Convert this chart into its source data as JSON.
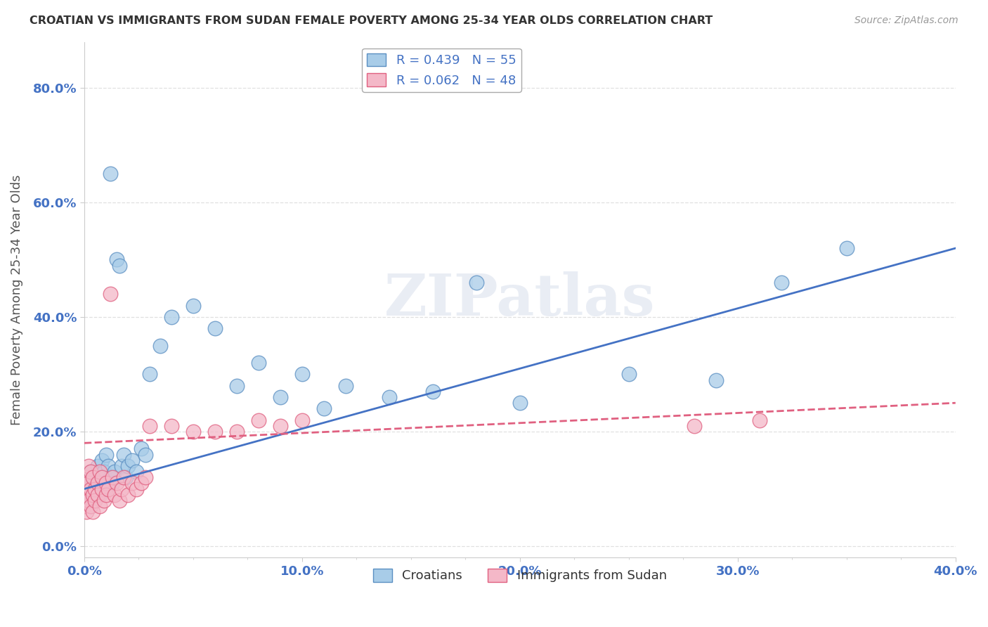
{
  "title": "CROATIAN VS IMMIGRANTS FROM SUDAN FEMALE POVERTY AMONG 25-34 YEAR OLDS CORRELATION CHART",
  "source": "Source: ZipAtlas.com",
  "xlabel_ticks": [
    "0.0%",
    "10.0%",
    "20.0%",
    "30.0%",
    "40.0%"
  ],
  "ylabel_ticks": [
    "0.0%",
    "20.0%",
    "40.0%",
    "60.0%",
    "80.0%"
  ],
  "xlim": [
    0.0,
    0.4
  ],
  "ylim": [
    -0.02,
    0.88
  ],
  "ylabel": "Female Poverty Among 25-34 Year Olds",
  "blue_series": {
    "name": "Croatians",
    "R": 0.439,
    "N": 55,
    "color": "#a8cce8",
    "edge_color": "#5b8fc2",
    "x": [
      0.0,
      0.001,
      0.001,
      0.002,
      0.002,
      0.003,
      0.003,
      0.003,
      0.004,
      0.004,
      0.005,
      0.005,
      0.006,
      0.006,
      0.007,
      0.007,
      0.008,
      0.008,
      0.009,
      0.01,
      0.01,
      0.011,
      0.012,
      0.012,
      0.013,
      0.014,
      0.015,
      0.016,
      0.017,
      0.018,
      0.019,
      0.02,
      0.022,
      0.024,
      0.026,
      0.028,
      0.03,
      0.035,
      0.04,
      0.05,
      0.06,
      0.07,
      0.08,
      0.09,
      0.1,
      0.11,
      0.12,
      0.14,
      0.16,
      0.18,
      0.2,
      0.25,
      0.29,
      0.32,
      0.35
    ],
    "y": [
      0.12,
      0.1,
      0.08,
      0.11,
      0.09,
      0.13,
      0.1,
      0.07,
      0.12,
      0.09,
      0.11,
      0.08,
      0.1,
      0.14,
      0.12,
      0.09,
      0.15,
      0.11,
      0.13,
      0.1,
      0.16,
      0.14,
      0.65,
      0.12,
      0.11,
      0.13,
      0.5,
      0.49,
      0.14,
      0.16,
      0.12,
      0.14,
      0.15,
      0.13,
      0.17,
      0.16,
      0.3,
      0.35,
      0.4,
      0.42,
      0.38,
      0.28,
      0.32,
      0.26,
      0.3,
      0.24,
      0.28,
      0.26,
      0.27,
      0.46,
      0.25,
      0.3,
      0.29,
      0.46,
      0.52
    ],
    "trend_line_color": "#4472c4",
    "trend_style": "solid",
    "trend_x0": 0.0,
    "trend_y0": 0.1,
    "trend_x1": 0.4,
    "trend_y1": 0.52
  },
  "pink_series": {
    "name": "Immigrants from Sudan",
    "R": 0.062,
    "N": 48,
    "color": "#f4b8c8",
    "edge_color": "#e06080",
    "x": [
      0.0,
      0.0,
      0.001,
      0.001,
      0.001,
      0.002,
      0.002,
      0.002,
      0.003,
      0.003,
      0.003,
      0.004,
      0.004,
      0.004,
      0.005,
      0.005,
      0.006,
      0.006,
      0.007,
      0.007,
      0.008,
      0.008,
      0.009,
      0.01,
      0.01,
      0.011,
      0.012,
      0.013,
      0.014,
      0.015,
      0.016,
      0.017,
      0.018,
      0.02,
      0.022,
      0.024,
      0.026,
      0.028,
      0.03,
      0.04,
      0.05,
      0.06,
      0.07,
      0.08,
      0.09,
      0.1,
      0.28,
      0.31
    ],
    "y": [
      0.1,
      0.07,
      0.12,
      0.09,
      0.06,
      0.11,
      0.08,
      0.14,
      0.1,
      0.07,
      0.13,
      0.09,
      0.06,
      0.12,
      0.1,
      0.08,
      0.11,
      0.09,
      0.13,
      0.07,
      0.1,
      0.12,
      0.08,
      0.11,
      0.09,
      0.1,
      0.44,
      0.12,
      0.09,
      0.11,
      0.08,
      0.1,
      0.12,
      0.09,
      0.11,
      0.1,
      0.11,
      0.12,
      0.21,
      0.21,
      0.2,
      0.2,
      0.2,
      0.22,
      0.21,
      0.22,
      0.21,
      0.22
    ],
    "trend_line_color": "#e06080",
    "trend_style": "dashed",
    "trend_x0": 0.0,
    "trend_y0": 0.18,
    "trend_x1": 0.4,
    "trend_y1": 0.25
  },
  "watermark_text": "ZIPatlas",
  "background_color": "#ffffff",
  "grid_color": "#dddddd"
}
